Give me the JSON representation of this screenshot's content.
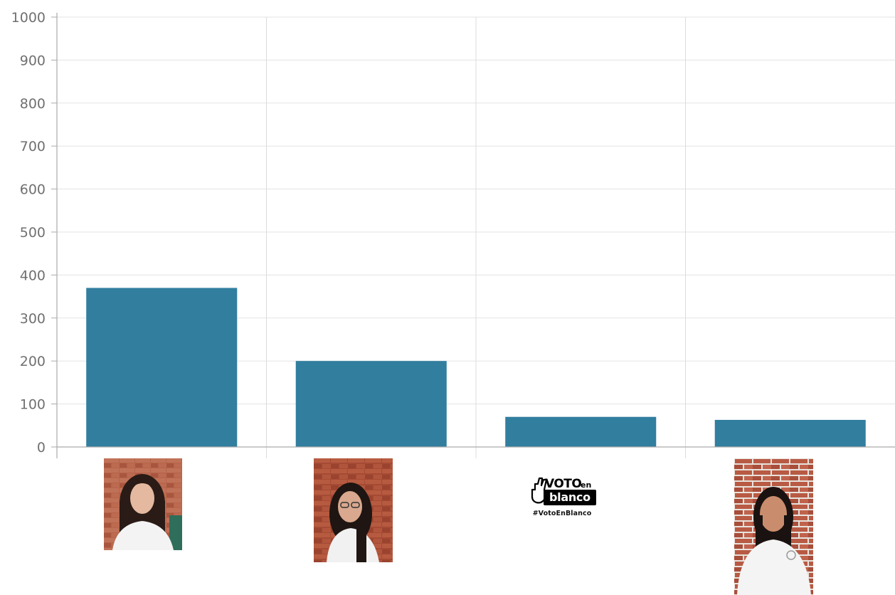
{
  "chart_data": {
    "type": "bar",
    "title": "",
    "xlabel": "",
    "ylabel": "",
    "ylim": [
      0,
      1000
    ],
    "yticks": [
      0,
      100,
      200,
      300,
      400,
      500,
      600,
      700,
      800,
      900,
      1000
    ],
    "grid": true,
    "bar_color": "#317e9f",
    "categories": [
      "candidate-1",
      "candidate-2",
      "voto-en-blanco",
      "candidate-4"
    ],
    "values": [
      370,
      200,
      70,
      63
    ]
  },
  "logo": {
    "word_voto": "VOTO",
    "word_en": "en",
    "word_blanco": "blanco",
    "hashtag": "#VotoEnBlanco"
  },
  "icons": {
    "logo_hand": "peace-sign-hand-icon"
  }
}
